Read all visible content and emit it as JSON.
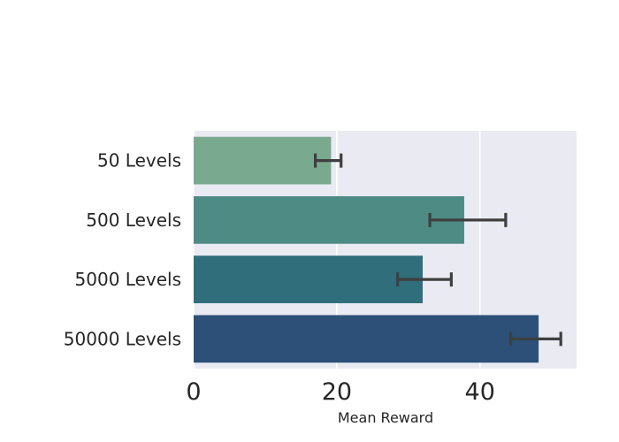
{
  "chart_data": {
    "type": "bar",
    "orientation": "horizontal",
    "categories": [
      "50 Levels",
      "500 Levels",
      "5000 Levels",
      "50000 Levels"
    ],
    "values": [
      19.2,
      37.8,
      32.0,
      48.2
    ],
    "error_low": [
      17.0,
      33.0,
      28.5,
      44.3
    ],
    "error_high": [
      20.6,
      43.6,
      36.0,
      51.3
    ],
    "xlabel": "Mean Reward",
    "ylabel": "",
    "xlim": [
      0,
      53.5
    ],
    "xticks": [
      0,
      20,
      40
    ],
    "grid": true,
    "colors": [
      "#79a98e",
      "#4e8b85",
      "#316e7b",
      "#2c5078"
    ],
    "background": "#eaeaf2",
    "errorbar_color": "#3f3f3f"
  }
}
